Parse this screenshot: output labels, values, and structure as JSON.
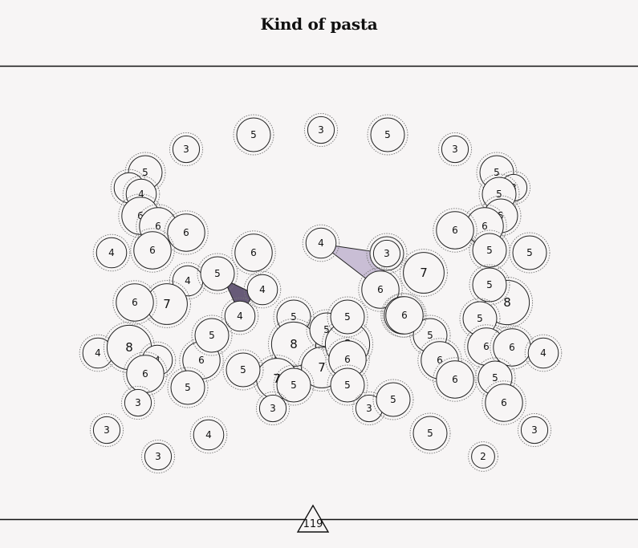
{
  "title": "Kind of pasta",
  "page_number": "119",
  "colors": {
    "background": "#f7f5f5",
    "rule": "#111111",
    "node_stroke": "#222222",
    "halo_stroke": "#777777",
    "shape_dark": "#675a78",
    "shape_light": "#c9bed5"
  },
  "nodes": [
    {
      "label": "5"
    },
    {
      "label": "3"
    },
    {
      "label": "5"
    },
    {
      "label": "3"
    },
    {
      "label": "3"
    },
    {
      "label": "5"
    },
    {
      "label": "4"
    },
    {
      "label": "4"
    },
    {
      "label": "6"
    },
    {
      "label": "6"
    },
    {
      "label": "6"
    },
    {
      "label": "6"
    },
    {
      "label": "4"
    },
    {
      "label": "5"
    },
    {
      "label": "3"
    },
    {
      "label": "5"
    },
    {
      "label": "5"
    },
    {
      "label": "6"
    },
    {
      "label": "6"
    },
    {
      "label": "5"
    },
    {
      "label": "5"
    },
    {
      "label": "6"
    },
    {
      "label": "4"
    },
    {
      "label": "5"
    },
    {
      "label": "4"
    },
    {
      "label": "4"
    },
    {
      "label": "7"
    },
    {
      "label": "6"
    },
    {
      "label": "4"
    },
    {
      "label": "3"
    },
    {
      "label": "6"
    },
    {
      "label": "7"
    },
    {
      "label": "5"
    },
    {
      "label": "8"
    },
    {
      "label": "6"
    },
    {
      "label": "5"
    },
    {
      "label": "5"
    },
    {
      "label": "5"
    },
    {
      "label": "6"
    },
    {
      "label": "4"
    },
    {
      "label": "8"
    },
    {
      "label": "4"
    },
    {
      "label": "6"
    },
    {
      "label": "6"
    },
    {
      "label": "5"
    },
    {
      "label": "5"
    },
    {
      "label": "6"
    },
    {
      "label": "8"
    },
    {
      "label": "7"
    },
    {
      "label": "6"
    },
    {
      "label": "7"
    },
    {
      "label": "5"
    },
    {
      "label": "8"
    },
    {
      "label": "5"
    },
    {
      "label": "5"
    },
    {
      "label": "6"
    },
    {
      "label": "6"
    },
    {
      "label": "6"
    },
    {
      "label": "4"
    },
    {
      "label": "5"
    },
    {
      "label": "6"
    },
    {
      "label": "5"
    },
    {
      "label": "6"
    },
    {
      "label": "5"
    },
    {
      "label": "3"
    },
    {
      "label": "3"
    },
    {
      "label": "5"
    },
    {
      "label": "5"
    },
    {
      "label": "3"
    },
    {
      "label": "3"
    },
    {
      "label": "2"
    },
    {
      "label": "4"
    },
    {
      "label": "3"
    },
    {
      "label": "5"
    },
    {
      "label": "3"
    }
  ]
}
